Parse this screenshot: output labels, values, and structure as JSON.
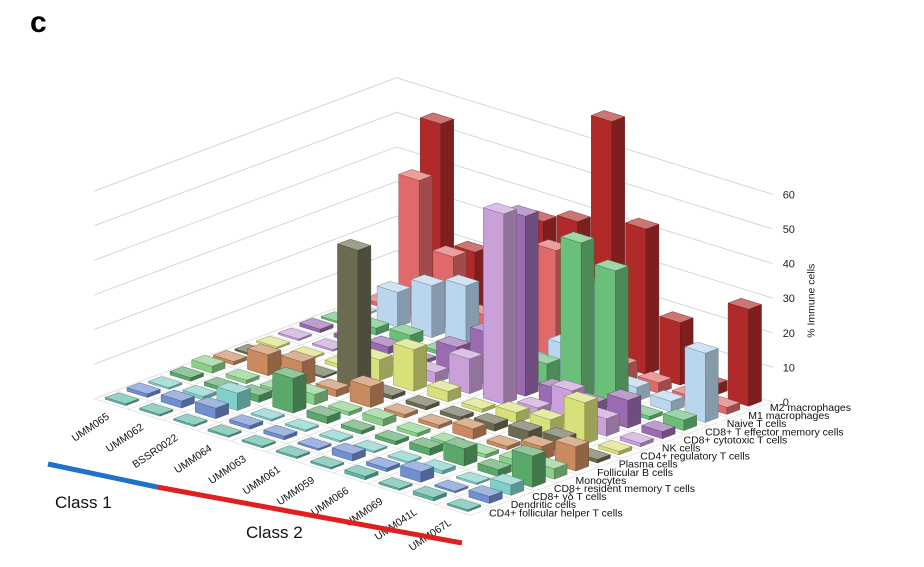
{
  "panel_letter": "c",
  "chart_data": {
    "type": "bar3d",
    "zlabel": "% Immune cells",
    "zlim": [
      0,
      65
    ],
    "zticks": [
      "0",
      "10",
      "20",
      "30",
      "40",
      "50",
      "60"
    ],
    "grid": true,
    "samples": [
      "UMM065",
      "UMM062",
      "BSSR0022",
      "UMM064",
      "UMM063",
      "UMM061",
      "UMM059",
      "UMM066",
      "UMM069",
      "UMM041L",
      "UMM067L"
    ],
    "cell_types": [
      "CD4+ follicular helper T cells",
      "Dendritic cells",
      "CD8+ γδ T cells",
      "CD8+ resident memory T cells",
      "Monocytes",
      "Follicular B cells",
      "Plasma cells",
      "CD4+ regulatory T cells",
      "NK cells",
      "CD8+ cytotoxic T cells",
      "CD8+ T effector memory cells",
      "Naive T cells",
      "M1 macrophages",
      "M2 macrophages"
    ],
    "colors": [
      "#5fb6a5",
      "#6f8fd0",
      "#7fd0c8",
      "#5aa86a",
      "#8ad08a",
      "#c88a5e",
      "#6b6b52",
      "#d8e07a",
      "#c9a0d8",
      "#9a6bb0",
      "#6ac07a",
      "#b9d6ee",
      "#e06a6a",
      "#b02a2a"
    ],
    "values": [
      [
        0.5,
        1,
        0.5,
        1,
        2,
        1,
        0.5,
        0.5,
        0.5,
        1,
        0.5,
        0.5,
        1,
        1
      ],
      [
        0.5,
        2,
        1,
        1,
        1,
        6,
        0.5,
        0.5,
        0.5,
        1,
        2,
        10,
        40,
        54
      ],
      [
        0.5,
        3,
        5,
        2,
        1,
        7,
        0.5,
        1,
        1,
        2,
        3,
        15,
        21,
        20
      ],
      [
        0.5,
        1,
        0.5,
        10,
        3,
        2,
        40,
        6,
        1,
        1,
        1,
        18,
        7,
        5
      ],
      [
        0.5,
        1,
        0.5,
        2,
        1,
        6,
        1,
        12,
        3,
        8,
        3,
        7,
        31,
        35
      ],
      [
        0.5,
        0.5,
        0.5,
        1,
        2,
        1,
        1,
        3,
        10,
        15,
        12,
        3,
        32,
        38
      ],
      [
        0.5,
        2,
        0.5,
        1,
        1,
        1,
        1,
        1,
        55,
        52,
        7,
        10,
        25,
        70
      ],
      [
        1,
        1,
        0.5,
        2,
        1,
        3,
        2,
        3,
        2,
        5,
        45,
        28,
        5,
        42
      ],
      [
        0.5,
        3,
        1,
        5,
        1,
        1,
        3,
        4,
        10,
        4,
        40,
        4,
        3,
        18
      ],
      [
        1,
        0.5,
        0.5,
        2,
        2,
        4,
        4,
        12,
        5,
        8,
        1,
        3,
        2,
        3
      ],
      [
        0.5,
        2,
        3,
        9,
        3,
        7,
        1,
        1,
        1,
        2,
        3,
        20,
        2,
        28
      ]
    ],
    "classes": [
      {
        "name": "Class 1",
        "color": "#1e73c8"
      },
      {
        "name": "Class 2",
        "color": "#e02020"
      }
    ]
  }
}
